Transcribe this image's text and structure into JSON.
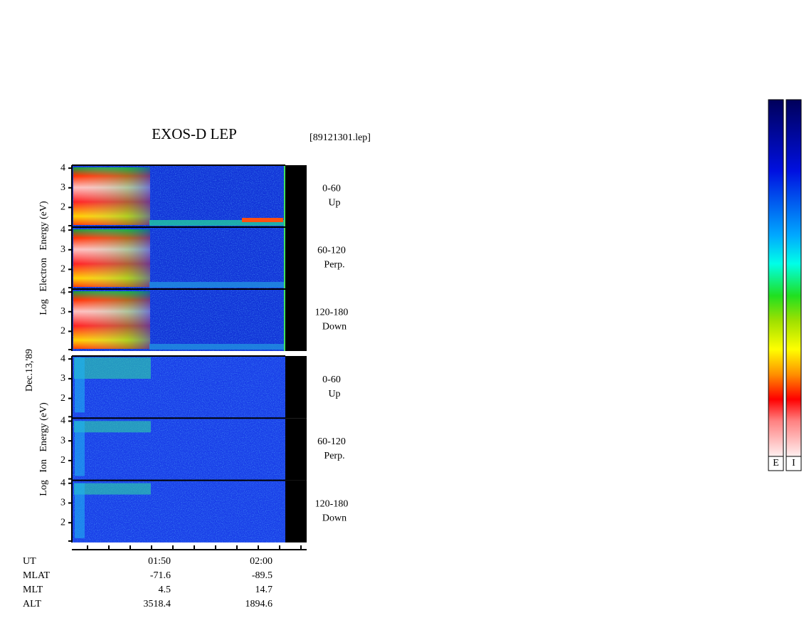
{
  "title": "EXOS-D LEP",
  "file": "[89121301.lep]",
  "energy_axis": {
    "lim": [
      1,
      4.15
    ],
    "ticks": [
      2,
      3,
      4
    ]
  },
  "electron": {
    "label": "Log   Electron   Energy (eV)",
    "panels": [
      {
        "range": "0-60",
        "direction": "Up"
      },
      {
        "range": "60-120",
        "direction": "Perp."
      },
      {
        "range": "120-180",
        "direction": "Down"
      }
    ]
  },
  "ion": {
    "label": "Log   Ion   Energy (eV)",
    "panels": [
      {
        "range": "0-60",
        "direction": "Up"
      },
      {
        "range": "60-120",
        "direction": "Perp."
      },
      {
        "range": "120-180",
        "direction": "Down"
      }
    ]
  },
  "date": "Dec.13,'89",
  "ephemeris": {
    "rows": [
      {
        "name": "UT",
        "values": [
          "01:50",
          "02:00"
        ]
      },
      {
        "name": "MLAT",
        "values": [
          "-71.6",
          "-89.5"
        ]
      },
      {
        "name": "MLT",
        "values": [
          "4.5",
          "14.7"
        ]
      },
      {
        "name": "ALT",
        "values": [
          "3518.4",
          "1894.6"
        ]
      }
    ]
  },
  "colorbars": [
    "E",
    "I"
  ]
}
